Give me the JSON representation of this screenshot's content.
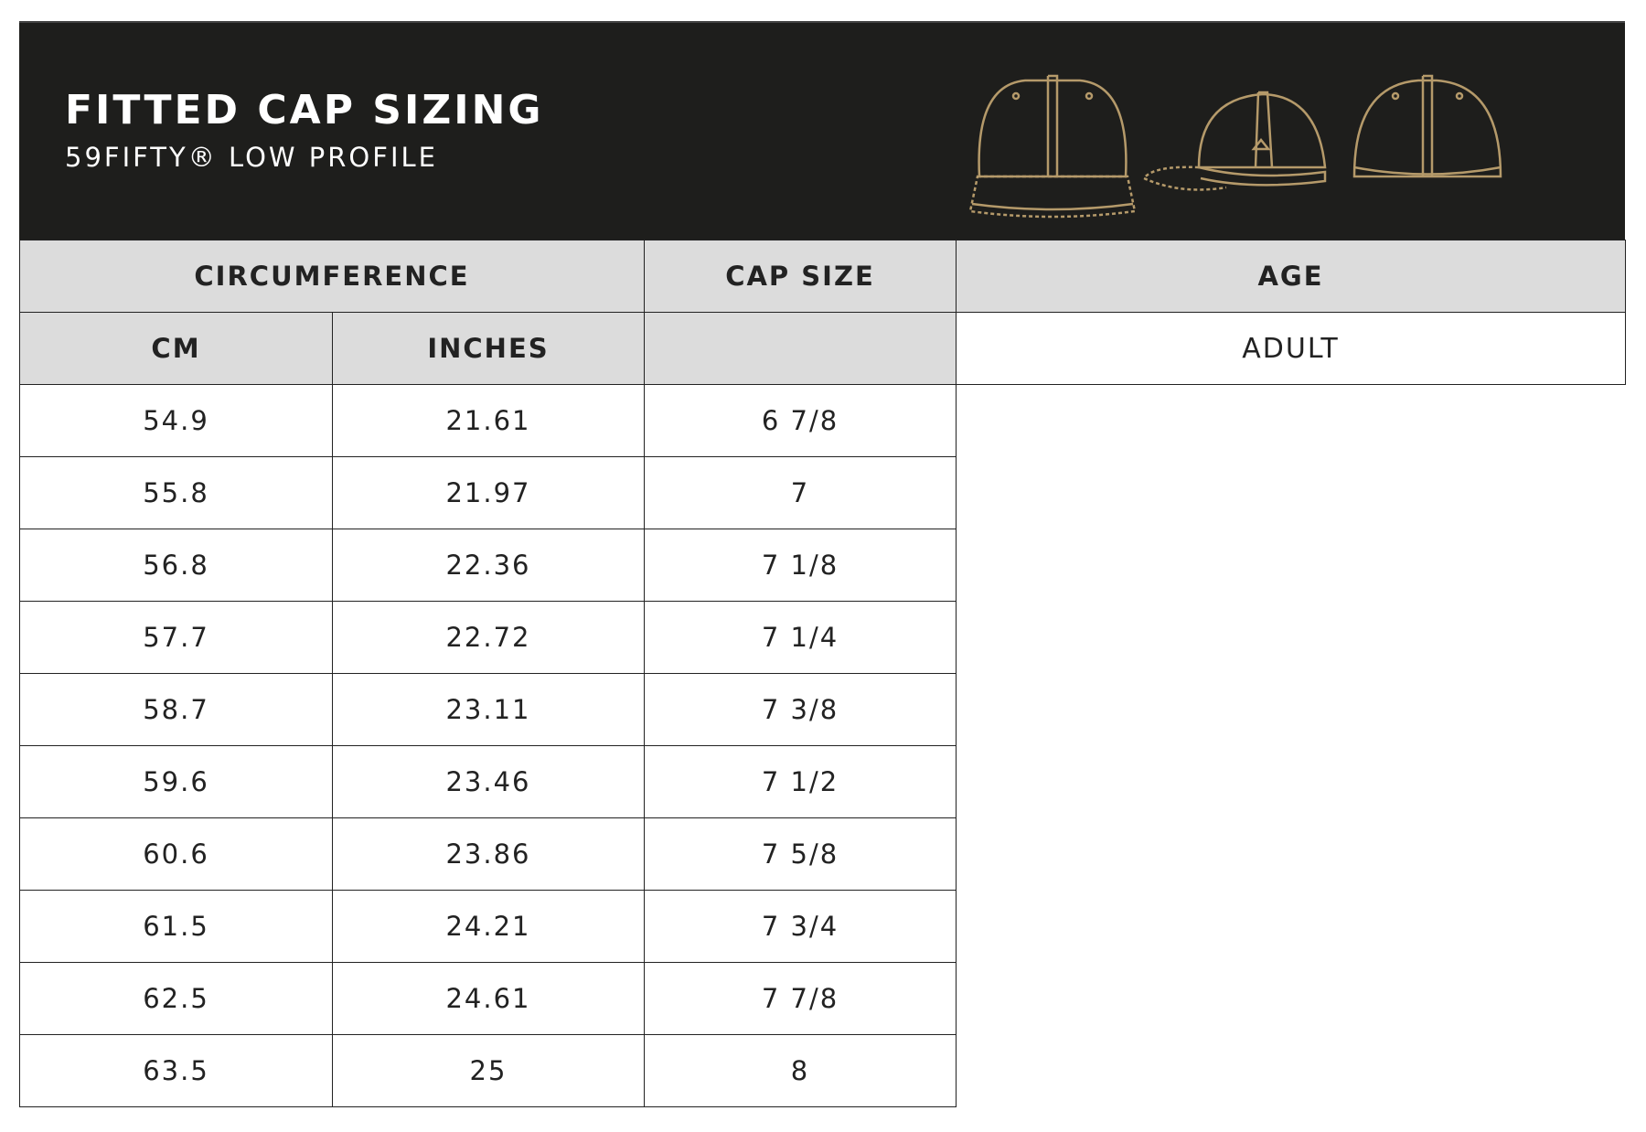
{
  "header": {
    "title": "FITTED CAP SIZING",
    "subtitle": "59FIFTY® LOW PROFILE",
    "background_color": "#1e1e1c",
    "illustration_color": "#b59a6a",
    "icons": [
      "cap-front-icon",
      "cap-side-icon",
      "cap-back-icon"
    ]
  },
  "table": {
    "group_headers": {
      "circumference": "CIRCUMFERENCE",
      "cap_size": "CAP SIZE",
      "age": "AGE"
    },
    "sub_headers": {
      "cm": "CM",
      "inches": "INCHES"
    },
    "age_value": "ADULT",
    "rows": [
      {
        "cm": "54.9",
        "inches": "21.61",
        "size": "6 7/8"
      },
      {
        "cm": "55.8",
        "inches": "21.97",
        "size": "7"
      },
      {
        "cm": "56.8",
        "inches": "22.36",
        "size": "7 1/8"
      },
      {
        "cm": "57.7",
        "inches": "22.72",
        "size": "7 1/4"
      },
      {
        "cm": "58.7",
        "inches": "23.11",
        "size": "7 3/8"
      },
      {
        "cm": "59.6",
        "inches": "23.46",
        "size": "7 1/2"
      },
      {
        "cm": "60.6",
        "inches": "23.86",
        "size": "7 5/8"
      },
      {
        "cm": "61.5",
        "inches": "24.21",
        "size": "7 3/4"
      },
      {
        "cm": "62.5",
        "inches": "24.61",
        "size": "7 7/8"
      },
      {
        "cm": "63.5",
        "inches": "25",
        "size": "8"
      }
    ]
  }
}
